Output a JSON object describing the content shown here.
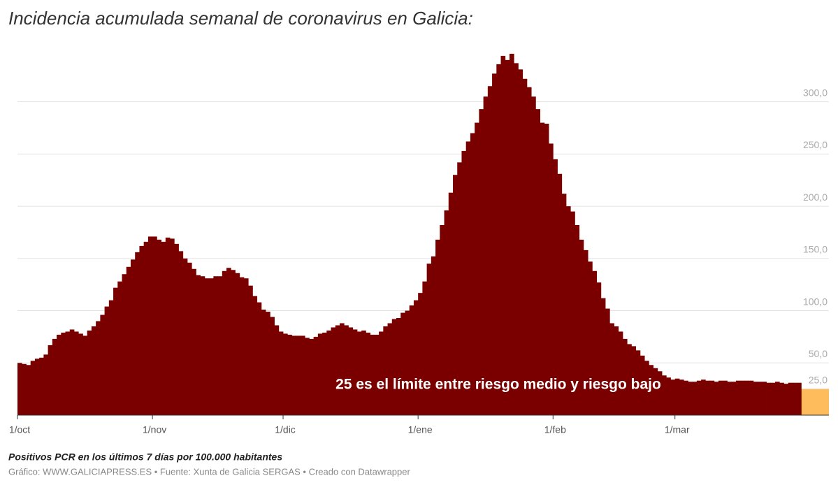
{
  "chart_data": {
    "type": "bar",
    "title": "Incidencia acumulada semanal de coronavirus en Galicia:",
    "note": "Positivos PCR en los últimos 7 días por 100.000 habitantes",
    "source": "Gráfico: WWW.GALICIAPRESS.ES • Fuente: Xunta de Galicia SERGAS • Creado con Datawrapper",
    "annotation": "25 es el límite entre riesgo medio y riesgo bajo",
    "threshold": 25,
    "threshold_color": "#ffbc5c",
    "color": "#7a0000",
    "categories": [
      "1/oct",
      null,
      null,
      null,
      null,
      null,
      null,
      null,
      null,
      null,
      null,
      null,
      null,
      null,
      null,
      null,
      null,
      null,
      null,
      null,
      null,
      null,
      null,
      null,
      null,
      null,
      null,
      null,
      null,
      null,
      null,
      "1/nov",
      null,
      null,
      null,
      null,
      null,
      null,
      null,
      null,
      null,
      null,
      null,
      null,
      null,
      null,
      null,
      null,
      null,
      null,
      null,
      null,
      null,
      null,
      null,
      null,
      null,
      null,
      null,
      null,
      null,
      "1/dic",
      null,
      null,
      null,
      null,
      null,
      null,
      null,
      null,
      null,
      null,
      null,
      null,
      null,
      null,
      null,
      null,
      null,
      null,
      null,
      null,
      null,
      null,
      null,
      null,
      null,
      null,
      null,
      null,
      null,
      null,
      "1/ene",
      null,
      null,
      null,
      null,
      null,
      null,
      null,
      null,
      null,
      null,
      null,
      null,
      null,
      null,
      null,
      null,
      null,
      null,
      null,
      null,
      null,
      null,
      null,
      null,
      null,
      null,
      null,
      null,
      null,
      null,
      "1/feb",
      null,
      null,
      null,
      null,
      null,
      null,
      null,
      null,
      null,
      null,
      null,
      null,
      null,
      null,
      null,
      null,
      null,
      null,
      null,
      null,
      null,
      null,
      null,
      null,
      null,
      null,
      null,
      "1/mar",
      null,
      null,
      null,
      null,
      null,
      null,
      null,
      null,
      null,
      null,
      null,
      null,
      null,
      null,
      null,
      null,
      null,
      null,
      null,
      null,
      null,
      null,
      null,
      null,
      null,
      null,
      null,
      null
    ],
    "values": [
      50,
      49,
      48,
      52,
      54,
      55,
      58,
      67,
      73,
      77,
      79,
      80,
      82,
      80,
      78,
      76,
      81,
      85,
      90,
      96,
      104,
      110,
      122,
      128,
      135,
      142,
      149,
      156,
      162,
      166,
      171,
      171,
      168,
      166,
      170,
      169,
      164,
      157,
      150,
      146,
      140,
      134,
      133,
      131,
      131,
      133,
      133,
      138,
      141,
      139,
      136,
      132,
      131,
      124,
      114,
      108,
      101,
      99,
      94,
      86,
      80,
      78,
      77,
      76,
      76,
      76,
      74,
      73,
      75,
      78,
      79,
      81,
      84,
      86,
      88,
      86,
      84,
      82,
      80,
      81,
      79,
      77,
      77,
      80,
      85,
      88,
      92,
      93,
      98,
      100,
      105,
      110,
      117,
      128,
      145,
      152,
      168,
      182,
      196,
      213,
      230,
      242,
      253,
      262,
      270,
      280,
      293,
      305,
      315,
      327,
      336,
      344,
      340,
      346,
      337,
      331,
      322,
      314,
      305,
      293,
      280,
      279,
      260,
      245,
      231,
      212,
      200,
      195,
      182,
      168,
      158,
      147,
      138,
      127,
      112,
      102,
      88,
      85,
      80,
      73,
      68,
      66,
      62,
      57,
      52,
      48,
      45,
      42,
      38,
      36,
      34,
      35,
      34,
      33,
      32,
      32,
      33,
      34,
      33,
      33,
      32,
      33,
      33,
      32,
      32,
      33,
      33,
      33,
      33,
      32,
      32,
      32,
      31,
      31,
      32,
      31,
      30,
      31,
      31,
      31
    ],
    "ylim": [
      0,
      360
    ],
    "yticks": [
      {
        "value": 25,
        "label": "25,0"
      },
      {
        "value": 50,
        "label": "50,0"
      },
      {
        "value": 100,
        "label": "100,0"
      },
      {
        "value": 150,
        "label": "150,0"
      },
      {
        "value": 200,
        "label": "200,0"
      },
      {
        "value": 250,
        "label": "250,0"
      },
      {
        "value": 300,
        "label": "300,0"
      }
    ],
    "grid": true
  }
}
